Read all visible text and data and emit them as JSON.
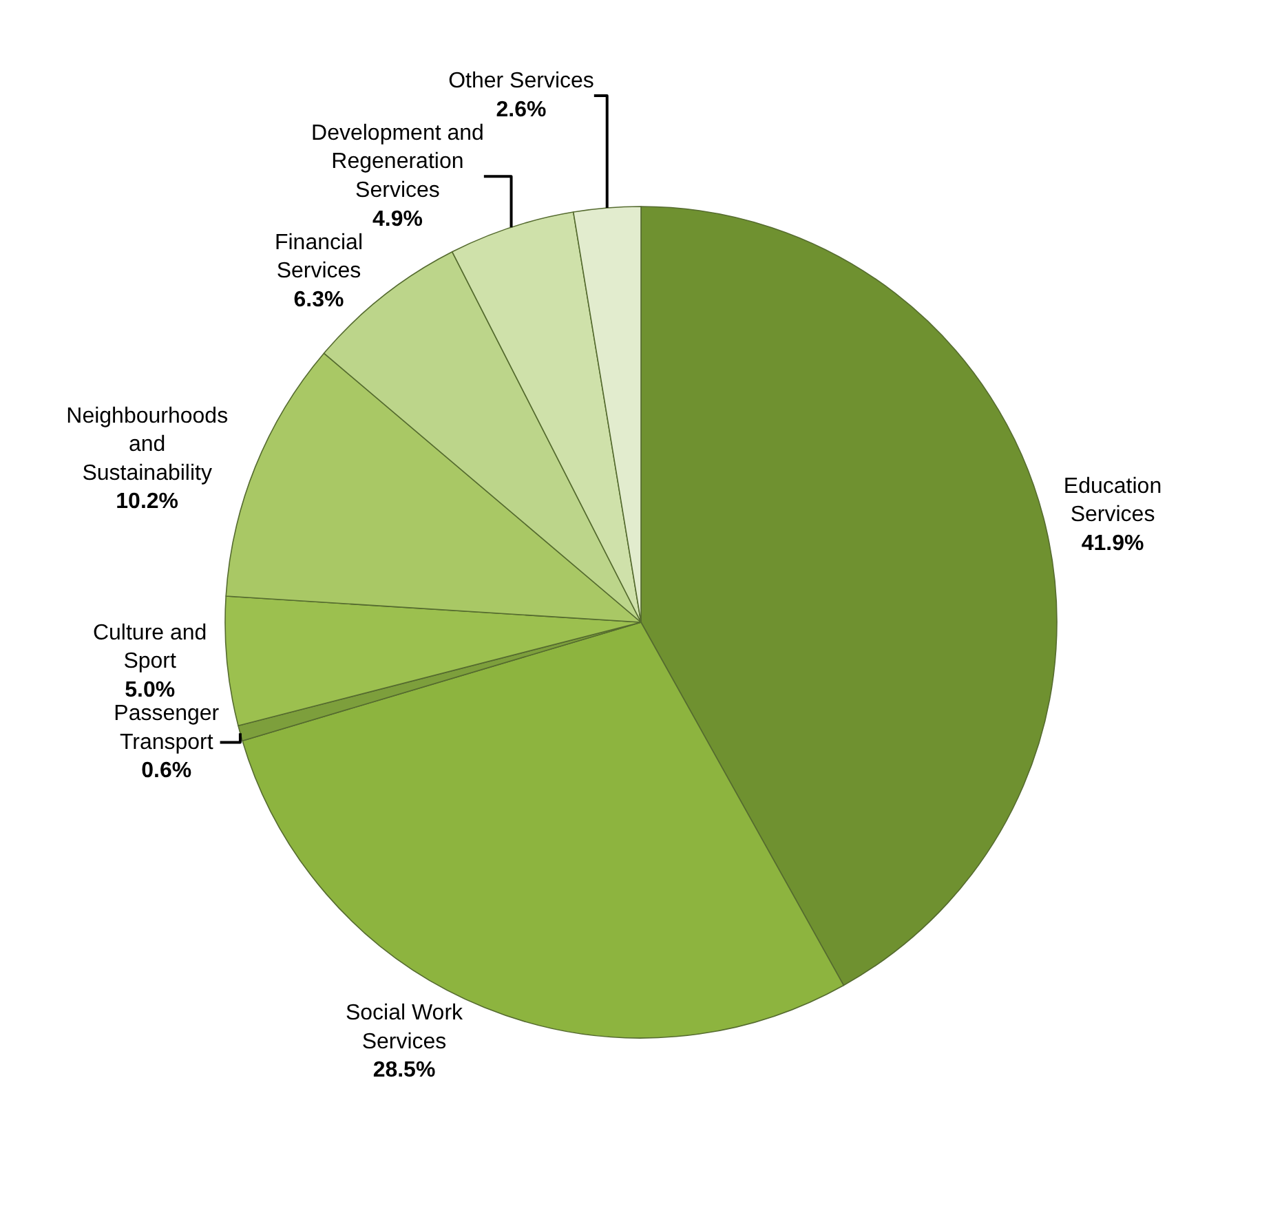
{
  "chart_data": {
    "type": "pie",
    "categories": [
      "Education Services",
      "Social Work Services",
      "Passenger Transport",
      "Culture and Sport",
      "Neighbourhoods and Sustainability",
      "Financial Services",
      "Development and Regeneration Services",
      "Other Services"
    ],
    "values": [
      41.9,
      28.5,
      0.6,
      5.0,
      10.2,
      6.3,
      4.9,
      2.6
    ],
    "value_labels": [
      "41.9%",
      "28.5%",
      "0.6%",
      "5.0%",
      "10.2%",
      "6.3%",
      "4.9%",
      "2.6%"
    ],
    "colors": [
      "#6f9130",
      "#8db43f",
      "#7d9f3c",
      "#9cc04f",
      "#a9c865",
      "#bcd58a",
      "#cfe1aa",
      "#e2ecce"
    ],
    "legend": false
  }
}
